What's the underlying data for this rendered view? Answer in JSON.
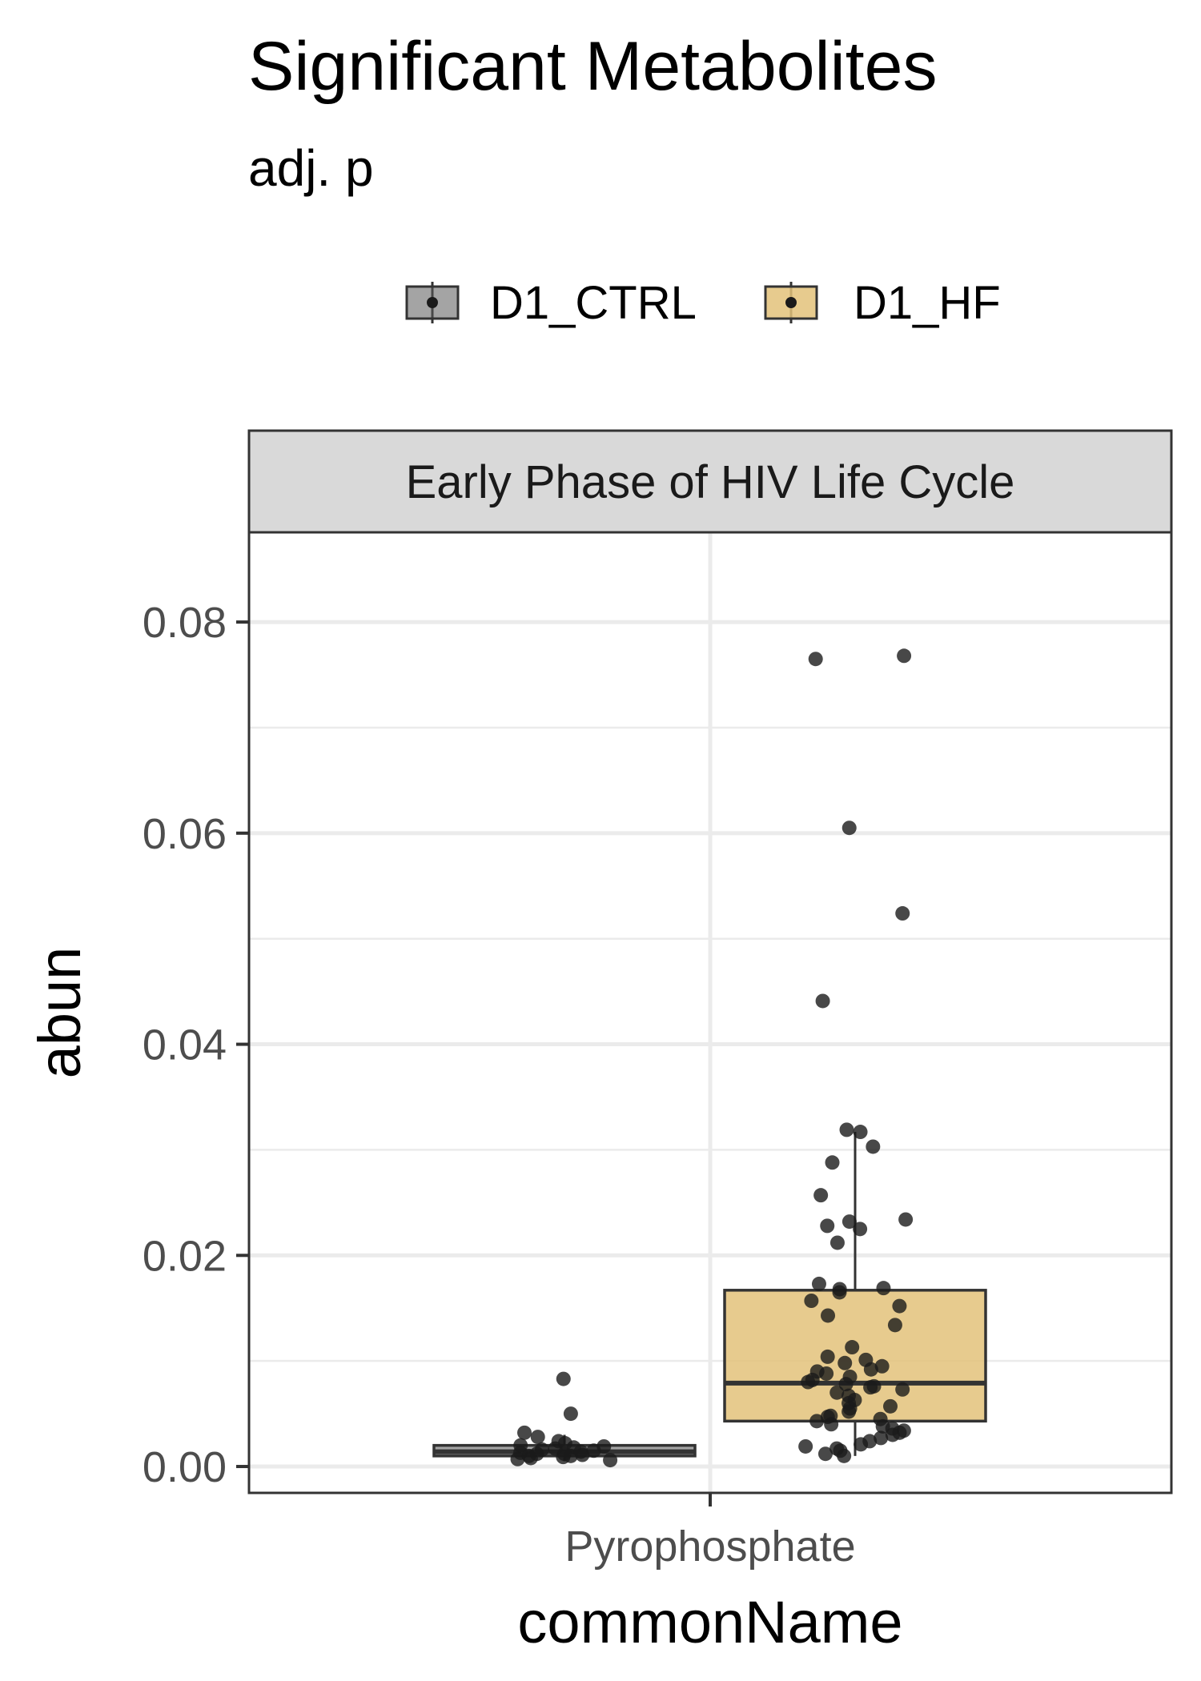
{
  "chart_data": {
    "type": "box",
    "title": "Significant Metabolites",
    "subtitle": "adj. p",
    "facet": "Early Phase of HIV Life Cycle",
    "xlabel": "commonName",
    "ylabel": "abun",
    "categories": [
      "Pyrophosphate"
    ],
    "ylim": [
      -0.0025,
      0.0885
    ],
    "yticks": [
      "0.00",
      "0.02",
      "0.04",
      "0.06",
      "0.08"
    ],
    "ytick_values": [
      0,
      0.02,
      0.04,
      0.06,
      0.08
    ],
    "legend_position": "top",
    "grid": true,
    "colors": {
      "D1_CTRL": "#595959",
      "D1_HF": "#e3c27a",
      "points": "#1a1a1a"
    },
    "series": [
      {
        "name": "D1_CTRL",
        "box": {
          "min": 0.0005,
          "q1": 0.001,
          "median": 0.0014,
          "q3": 0.002,
          "max": 0.003
        },
        "points": [
          0.0083,
          0.005,
          0.0032,
          0.0028,
          0.0024,
          0.0022,
          0.002,
          0.0019,
          0.0018,
          0.0017,
          0.0016,
          0.0015,
          0.0014,
          0.0013,
          0.0012,
          0.0012,
          0.0011,
          0.001,
          0.001,
          0.0009,
          0.0008,
          0.0007,
          0.0006
        ]
      },
      {
        "name": "D1_HF",
        "box": {
          "min": 0.001,
          "q1": 0.0043,
          "median": 0.0079,
          "q3": 0.0167,
          "max": 0.0317
        },
        "points": [
          0.0768,
          0.0765,
          0.0605,
          0.0524,
          0.0441,
          0.0319,
          0.0317,
          0.0303,
          0.0288,
          0.0257,
          0.0234,
          0.0232,
          0.0228,
          0.0225,
          0.0212,
          0.0173,
          0.0169,
          0.0168,
          0.0165,
          0.0157,
          0.0152,
          0.0143,
          0.0134,
          0.0113,
          0.0104,
          0.0101,
          0.0098,
          0.0095,
          0.0092,
          0.009,
          0.0088,
          0.0085,
          0.0082,
          0.008,
          0.0078,
          0.0076,
          0.0075,
          0.0073,
          0.007,
          0.0067,
          0.0063,
          0.006,
          0.0057,
          0.0055,
          0.0052,
          0.0048,
          0.0047,
          0.0045,
          0.0043,
          0.004,
          0.0038,
          0.0036,
          0.0034,
          0.0032,
          0.003,
          0.0027,
          0.0024,
          0.0021,
          0.0019,
          0.0017,
          0.0015,
          0.0012,
          0.001
        ]
      }
    ]
  }
}
